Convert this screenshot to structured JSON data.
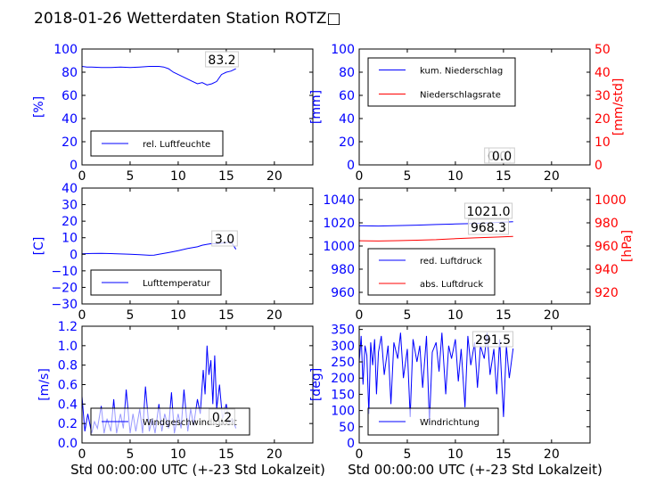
{
  "figure": {
    "title": "2018-01-26 Wetterdaten Station ROTZ□",
    "xlabel": "Std 00:00:00 UTC (+-23 Std Lokalzeit)"
  },
  "colors": {
    "left_axis": "#0000ff",
    "right_axis": "#ff0000",
    "series_blue": "#0000ff",
    "series_red": "#ff0000"
  },
  "chart_data": [
    {
      "id": "humidity",
      "type": "line",
      "ylabel": "[%]",
      "ylim": [
        0,
        100
      ],
      "yticks": [
        "0",
        "20",
        "40",
        "60",
        "80",
        "100"
      ],
      "xlim": [
        0,
        24
      ],
      "xticks": [
        "0",
        "5",
        "10",
        "15",
        "20"
      ],
      "series": [
        {
          "name": "rel. Luftfeuchte",
          "color": "#0000ff",
          "x": [
            0,
            0.5,
            1,
            2,
            3,
            4,
            5,
            6,
            7,
            8,
            8.5,
            9,
            9.5,
            10,
            10.5,
            11,
            11.5,
            12,
            12.5,
            13,
            13.5,
            14,
            14.5,
            15,
            15.5,
            16
          ],
          "y": [
            85,
            84.5,
            84.5,
            84,
            84,
            84.5,
            84,
            84.5,
            85,
            85,
            84.5,
            83,
            80,
            78,
            76,
            74,
            72,
            70,
            71,
            69,
            70,
            72,
            78,
            80,
            81,
            83
          ]
        }
      ],
      "legend": "lower-left",
      "annotation": "83.2"
    },
    {
      "id": "precip",
      "type": "line",
      "ylabel": "[mm]",
      "ylim": [
        0,
        100
      ],
      "yticks": [
        "0",
        "20",
        "40",
        "60",
        "80",
        "100"
      ],
      "ylabel_right": "[mm/std]",
      "ylim_right": [
        0,
        50
      ],
      "yticks_right": [
        "0",
        "10",
        "20",
        "30",
        "40",
        "50"
      ],
      "xlim": [
        0,
        24
      ],
      "xticks": [
        "0",
        "5",
        "10",
        "15",
        "20"
      ],
      "series": [
        {
          "name": "kum. Niederschlag",
          "color": "#0000ff",
          "x": [
            0,
            16
          ],
          "y": [
            0,
            0
          ]
        },
        {
          "name": "Niederschlagsrate",
          "color": "#ff0000",
          "axis": "right",
          "x": [
            0,
            16
          ],
          "y": [
            0,
            0
          ]
        }
      ],
      "legend": "upper-left",
      "annotations": [
        "0.0",
        "0.0"
      ]
    },
    {
      "id": "temperature",
      "type": "line",
      "ylabel": "[C]",
      "ylim": [
        -30,
        40
      ],
      "yticks": [
        "−30",
        "−20",
        "−10",
        "0",
        "10",
        "20",
        "30",
        "40"
      ],
      "xlim": [
        0,
        24
      ],
      "xticks": [
        "0",
        "5",
        "10",
        "15",
        "20"
      ],
      "series": [
        {
          "name": "Lufttemperatur",
          "color": "#0000ff",
          "x": [
            0,
            1,
            2,
            3,
            4,
            5,
            6,
            7,
            7.5,
            8,
            9,
            10,
            11,
            12,
            12.5,
            13,
            13.5,
            14,
            14.5,
            15,
            15.5,
            16
          ],
          "y": [
            0.3,
            0.5,
            0.6,
            0.4,
            0.2,
            0,
            -0.3,
            -0.6,
            -0.5,
            0,
            1,
            2.2,
            3.5,
            4.5,
            5.5,
            6,
            6.5,
            6.2,
            6.8,
            7,
            7.5,
            3
          ]
        }
      ],
      "legend": "lower-left",
      "annotation": "3.0"
    },
    {
      "id": "pressure",
      "type": "line",
      "ylabel": "",
      "ylim": [
        950,
        1050
      ],
      "yticks": [
        "960",
        "980",
        "1000",
        "1020",
        "1040"
      ],
      "ylabel_right": "[hPa]",
      "ylim_right": [
        910,
        1010
      ],
      "yticks_right": [
        "920",
        "940",
        "960",
        "980",
        "1000"
      ],
      "xlim": [
        0,
        24
      ],
      "xticks": [
        "0",
        "5",
        "10",
        "15",
        "20"
      ],
      "series": [
        {
          "name": "red. Luftdruck",
          "color": "#0000ff",
          "x": [
            0,
            2,
            4,
            6,
            8,
            10,
            12,
            14,
            16
          ],
          "y": [
            1017.5,
            1017.2,
            1017.6,
            1018,
            1018.5,
            1019,
            1019.5,
            1020.2,
            1021
          ]
        },
        {
          "name": "abs. Luftdruck",
          "color": "#ff0000",
          "axis": "right",
          "x": [
            0,
            2,
            4,
            6,
            8,
            10,
            12,
            14,
            16
          ],
          "y": [
            964.5,
            964.3,
            964.6,
            965,
            965.5,
            966.3,
            967,
            967.6,
            968.3
          ]
        }
      ],
      "legend": "lower-left",
      "annotations": [
        "1021.0",
        "968.3"
      ]
    },
    {
      "id": "windspeed",
      "type": "line",
      "ylabel": "[m/s]",
      "ylim": [
        0,
        1.2
      ],
      "yticks": [
        "0.0",
        "0.2",
        "0.4",
        "0.6",
        "0.8",
        "1.0",
        "1.2"
      ],
      "xlim": [
        0,
        24
      ],
      "xticks": [
        "0",
        "5",
        "10",
        "15",
        "20"
      ],
      "series": [
        {
          "name": "Windgeschwindigkeit",
          "color": "#0000ff",
          "x": [
            0,
            0.3,
            0.6,
            1,
            1.3,
            1.6,
            2,
            2.3,
            2.6,
            3,
            3.3,
            3.6,
            4,
            4.3,
            4.6,
            5,
            5.3,
            5.6,
            6,
            6.3,
            6.6,
            7,
            7.3,
            7.6,
            8,
            8.3,
            8.6,
            9,
            9.3,
            9.6,
            10,
            10.3,
            10.6,
            11,
            11.3,
            11.6,
            12,
            12.3,
            12.6,
            12.8,
            13,
            13.2,
            13.4,
            13.6,
            13.8,
            14,
            14.3,
            14.6,
            15,
            15.3,
            15.6,
            16
          ],
          "y": [
            0.48,
            0.12,
            0.3,
            0.1,
            0.22,
            0.15,
            0.38,
            0.1,
            0.25,
            0.12,
            0.45,
            0.1,
            0.3,
            0.15,
            0.55,
            0.1,
            0.3,
            0.12,
            0.35,
            0.1,
            0.58,
            0.12,
            0.25,
            0.1,
            0.4,
            0.12,
            0.3,
            0.15,
            0.52,
            0.1,
            0.3,
            0.15,
            0.55,
            0.12,
            0.35,
            0.18,
            0.45,
            0.3,
            0.75,
            0.5,
            1.0,
            0.7,
            0.85,
            0.4,
            0.9,
            0.35,
            0.6,
            0.25,
            0.4,
            0.2,
            0.25,
            0.15
          ]
        }
      ],
      "legend": "lower-left",
      "annotation": "0.2"
    },
    {
      "id": "winddir",
      "type": "line",
      "ylabel": "[deg]",
      "ylim": [
        0,
        360
      ],
      "yticks": [
        "0",
        "50",
        "100",
        "150",
        "200",
        "250",
        "300",
        "350"
      ],
      "xlim": [
        0,
        24
      ],
      "xticks": [
        "0",
        "5",
        "10",
        "15",
        "20"
      ],
      "series": [
        {
          "name": "Windrichtung",
          "color": "#0000ff",
          "x": [
            0,
            0.2,
            0.4,
            0.6,
            0.8,
            1,
            1.2,
            1.4,
            1.6,
            1.8,
            2,
            2.3,
            2.6,
            3,
            3.3,
            3.6,
            4,
            4.3,
            4.6,
            5,
            5.3,
            5.6,
            6,
            6.3,
            6.6,
            7,
            7.3,
            7.6,
            8,
            8.3,
            8.6,
            9,
            9.3,
            9.6,
            10,
            10.3,
            10.6,
            11,
            11.3,
            11.6,
            12,
            12.3,
            12.6,
            13,
            13.3,
            13.6,
            14,
            14.3,
            14.6,
            15,
            15.3,
            15.6,
            16
          ],
          "y": [
            250,
            330,
            180,
            300,
            270,
            90,
            310,
            240,
            320,
            150,
            280,
            330,
            210,
            300,
            120,
            310,
            260,
            340,
            200,
            290,
            80,
            320,
            250,
            300,
            170,
            330,
            60,
            280,
            310,
            220,
            340,
            150,
            300,
            260,
            320,
            190,
            290,
            110,
            330,
            240,
            310,
            170,
            300,
            260,
            340,
            210,
            290,
            150,
            320,
            80,
            300,
            200,
            291.5
          ]
        }
      ],
      "legend": "lower-left",
      "annotation": "291.5"
    }
  ]
}
